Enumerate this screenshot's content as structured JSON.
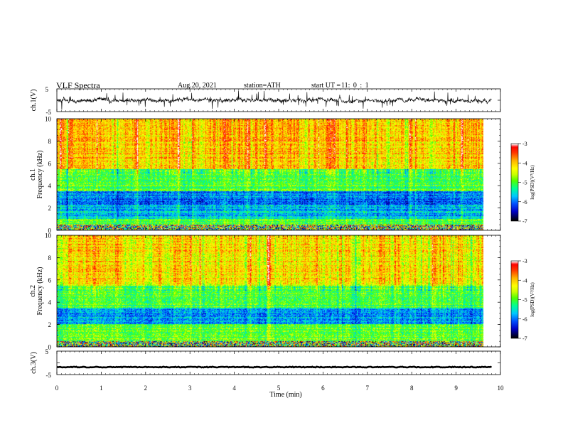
{
  "header": {
    "title": "VLF Spectra",
    "date": "Aug.20, 2021",
    "station": "station=ATH",
    "start_label": "start UT =",
    "start_time": "11: 0 : 1"
  },
  "colors": {
    "waveform": "#000000",
    "spectrogram_colormap": [
      "#000000",
      "#0000c8",
      "#0050ff",
      "#00c8ff",
      "#00ff96",
      "#50ff00",
      "#c8ff00",
      "#ffff00",
      "#ffb400",
      "#ff3c00",
      "#ff0000",
      "#ffffff"
    ]
  },
  "chart_data": [
    {
      "type": "line",
      "panel": "ch1-waveform",
      "ylabel": "ch.1(V)",
      "ylim": [
        -5,
        5
      ],
      "yticks": [
        "5",
        "-5"
      ],
      "xlim": [
        0,
        10
      ],
      "description": "noisy waveform centered near 0 V with spikes to roughly +/-2 V",
      "baseline": 0,
      "amplitude_range": [
        -2,
        2
      ]
    },
    {
      "type": "heatmap",
      "panel": "ch1-spectrogram",
      "ylabel": "Frequency (kHz)",
      "channel_label": "ch.1",
      "ylim": [
        0,
        10
      ],
      "yticks": [
        "0",
        "2",
        "4",
        "6",
        "8",
        "10"
      ],
      "xlim": [
        0,
        10
      ],
      "color_scale": {
        "label": "log(PSD)(V²/Hz)",
        "ticks": [
          "-3",
          "-4",
          "-5",
          "-6",
          "-7"
        ],
        "range": [
          -7,
          -3
        ]
      },
      "bands_khz": [
        {
          "range": [
            0,
            0.5
          ],
          "level": "mixed"
        },
        {
          "range": [
            0.5,
            1.0
          ],
          "level": -5.0
        },
        {
          "range": [
            1.0,
            2.2
          ],
          "level": -5.7
        },
        {
          "range": [
            2.2,
            3.5
          ],
          "level": -6.0
        },
        {
          "range": [
            3.5,
            5.5
          ],
          "level": -5.0
        },
        {
          "range": [
            5.5,
            10
          ],
          "level": -4.0
        }
      ]
    },
    {
      "type": "heatmap",
      "panel": "ch2-spectrogram",
      "ylabel": "Frequency (kHz)",
      "channel_label": "ch.2",
      "ylim": [
        0,
        10
      ],
      "yticks": [
        "0",
        "2",
        "4",
        "6",
        "8",
        "10"
      ],
      "xlim": [
        0,
        10
      ],
      "color_scale": {
        "label": "log(PSD)(V²/Hz)",
        "ticks": [
          "-3",
          "-4",
          "-5",
          "-6",
          "-7"
        ],
        "range": [
          -7,
          -3
        ]
      },
      "bands_khz": [
        {
          "range": [
            0,
            0.5
          ],
          "level": "mixed"
        },
        {
          "range": [
            0.5,
            2.0
          ],
          "level": -5.0
        },
        {
          "range": [
            2.0,
            3.5
          ],
          "level": -5.8
        },
        {
          "range": [
            3.5,
            5.5
          ],
          "level": -5.0
        },
        {
          "range": [
            5.5,
            10
          ],
          "level": -4.2
        }
      ]
    },
    {
      "type": "line",
      "panel": "ch3-waveform",
      "ylabel": "ch.3(V)",
      "ylim": [
        -5,
        5
      ],
      "yticks": [
        "5",
        "-5"
      ],
      "xlim": [
        0,
        10
      ],
      "xlabel": "Time (min)",
      "xticks": [
        "0",
        "1",
        "2",
        "3",
        "4",
        "5",
        "6",
        "7",
        "8",
        "9",
        "10"
      ],
      "description": "nearly constant signal",
      "value": -1.8
    }
  ],
  "data_end_min": 9.8
}
